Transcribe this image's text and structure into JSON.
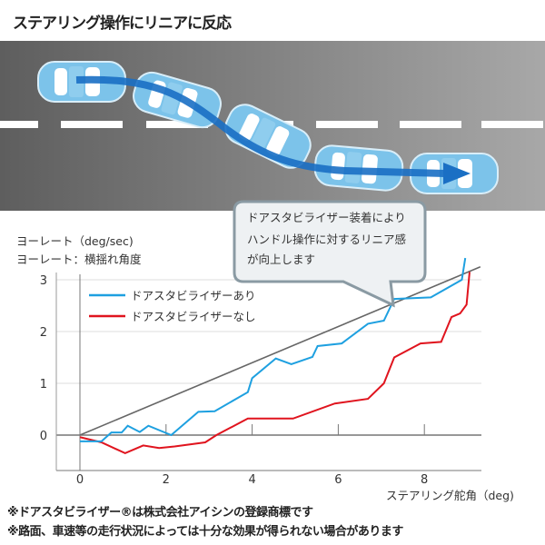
{
  "title": "ステアリング操作にリニアに反応",
  "illustration": {
    "car_color": "#7cc3ea",
    "arrow_color": "#1a6fc4",
    "road_color": "#6f6f6f",
    "car_count": 5
  },
  "callout": {
    "lines": [
      "ドアスタビライザー装着により",
      "ハンドル操作に対するリニア感",
      "が向上します"
    ]
  },
  "footnotes": [
    "※ドアスタビライザー®は株式会社アイシンの登録商標です",
    "※路面、車速等の走行状況によっては十分な効果が得られない場合があります"
  ],
  "chart_data": {
    "type": "line",
    "ylabel": "ヨーレート（deg/sec)",
    "ylabel_note": "ヨーレート：横揺れ角度",
    "xlabel": "ステアリング舵角（deg)",
    "xlim": [
      -0.55,
      9.3
    ],
    "ylim": [
      -0.43,
      3.3
    ],
    "x_ticks": [
      0,
      2,
      4,
      6,
      8
    ],
    "y_ticks": [
      0,
      1,
      2,
      3
    ],
    "grid": "horizontal",
    "legend_position": "top-left",
    "series": [
      {
        "name": "ドアスタビライザーあり",
        "color": "#1ea0e0",
        "points": [
          [
            0,
            -0.12
          ],
          [
            0.5,
            -0.12
          ],
          [
            0.73,
            0.05
          ],
          [
            0.97,
            0.05
          ],
          [
            1.11,
            0.18
          ],
          [
            1.39,
            0.06
          ],
          [
            1.59,
            0.18
          ],
          [
            2.12,
            0
          ],
          [
            2.75,
            0.45
          ],
          [
            3.13,
            0.46
          ],
          [
            3.9,
            0.83
          ],
          [
            4.0,
            1.1
          ],
          [
            4.55,
            1.48
          ],
          [
            4.91,
            1.37
          ],
          [
            5.4,
            1.51
          ],
          [
            5.52,
            1.72
          ],
          [
            6.08,
            1.77
          ],
          [
            6.69,
            2.15
          ],
          [
            7.06,
            2.21
          ],
          [
            7.3,
            2.63
          ],
          [
            8.15,
            2.66
          ],
          [
            8.87,
            3.0
          ],
          [
            8.95,
            3.42
          ]
        ]
      },
      {
        "name": "ドアスタビライザーなし",
        "color": "#e0141e",
        "points": [
          [
            0,
            -0.04
          ],
          [
            0.5,
            -0.14
          ],
          [
            1.05,
            -0.35
          ],
          [
            1.47,
            -0.2
          ],
          [
            1.84,
            -0.25
          ],
          [
            2.2,
            -0.22
          ],
          [
            2.91,
            -0.14
          ],
          [
            3.17,
            0
          ],
          [
            3.9,
            0.32
          ],
          [
            4.95,
            0.32
          ],
          [
            5.92,
            0.61
          ],
          [
            6.69,
            0.7
          ],
          [
            7.06,
            1.0
          ],
          [
            7.3,
            1.5
          ],
          [
            7.91,
            1.77
          ],
          [
            8.39,
            1.8
          ],
          [
            8.63,
            2.28
          ],
          [
            8.83,
            2.35
          ],
          [
            8.98,
            2.52
          ],
          [
            9.05,
            3.15
          ]
        ]
      },
      {
        "color": "#666666",
        "points": [
          [
            0,
            0
          ],
          [
            9.3,
            3.25
          ]
        ]
      }
    ]
  }
}
